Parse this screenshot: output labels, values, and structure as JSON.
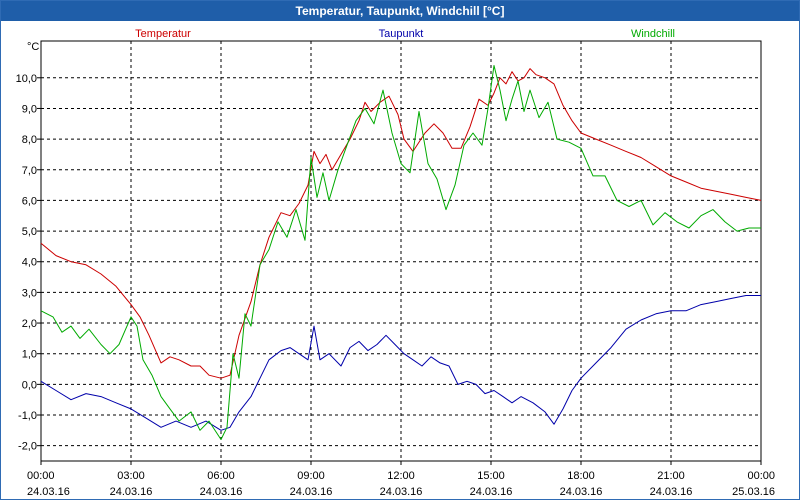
{
  "window": {
    "title": "Temperatur, Taupunkt, Windchill [°C]"
  },
  "chart_data": {
    "type": "line",
    "title": "Temperatur, Taupunkt, Windchill [°C]",
    "ylabel": "°C",
    "ylim": [
      -2.5,
      11.2
    ],
    "xlim": [
      0,
      24
    ],
    "grid": true,
    "yticks": [
      {
        "v": 10,
        "label": "10,0"
      },
      {
        "v": 9,
        "label": "9,0"
      },
      {
        "v": 8,
        "label": "8,0"
      },
      {
        "v": 7,
        "label": "7,0"
      },
      {
        "v": 6,
        "label": "6,0"
      },
      {
        "v": 5,
        "label": "5,0"
      },
      {
        "v": 4,
        "label": "4,0"
      },
      {
        "v": 3,
        "label": "3,0"
      },
      {
        "v": 2,
        "label": "2,0"
      },
      {
        "v": 1,
        "label": "1,0"
      },
      {
        "v": 0,
        "label": "0,0"
      },
      {
        "v": -1,
        "label": "-1,0"
      },
      {
        "v": -2,
        "label": "-2,0"
      }
    ],
    "xticks": [
      {
        "v": 0,
        "time": "00:00",
        "date": "24.03.16"
      },
      {
        "v": 3,
        "time": "03:00",
        "date": "24.03.16"
      },
      {
        "v": 6,
        "time": "06:00",
        "date": "24.03.16"
      },
      {
        "v": 9,
        "time": "09:00",
        "date": "24.03.16"
      },
      {
        "v": 12,
        "time": "12:00",
        "date": "24.03.16"
      },
      {
        "v": 15,
        "time": "15:00",
        "date": "24.03.16"
      },
      {
        "v": 18,
        "time": "18:00",
        "date": "24.03.16"
      },
      {
        "v": 21,
        "time": "21:00",
        "date": "24.03.16"
      },
      {
        "v": 24,
        "time": "00:00",
        "date": "25.03.16"
      }
    ],
    "series": [
      {
        "name": "Temperatur",
        "color": "#cc0000",
        "points": [
          [
            0,
            4.6
          ],
          [
            0.5,
            4.2
          ],
          [
            1,
            4.0
          ],
          [
            1.5,
            3.9
          ],
          [
            2,
            3.6
          ],
          [
            2.5,
            3.2
          ],
          [
            3,
            2.6
          ],
          [
            3.3,
            2.2
          ],
          [
            3.6,
            1.6
          ],
          [
            4,
            0.7
          ],
          [
            4.3,
            0.9
          ],
          [
            4.6,
            0.8
          ],
          [
            5,
            0.6
          ],
          [
            5.3,
            0.6
          ],
          [
            5.6,
            0.3
          ],
          [
            6,
            0.2
          ],
          [
            6.3,
            0.3
          ],
          [
            6.6,
            1.6
          ],
          [
            7,
            2.7
          ],
          [
            7.3,
            3.9
          ],
          [
            7.6,
            4.8
          ],
          [
            8,
            5.6
          ],
          [
            8.3,
            5.5
          ],
          [
            8.6,
            5.9
          ],
          [
            8.9,
            6.5
          ],
          [
            9.1,
            7.6
          ],
          [
            9.3,
            7.2
          ],
          [
            9.5,
            7.5
          ],
          [
            9.7,
            7.0
          ],
          [
            10,
            7.5
          ],
          [
            10.3,
            8.0
          ],
          [
            10.6,
            8.6
          ],
          [
            10.8,
            9.2
          ],
          [
            11,
            8.9
          ],
          [
            11.3,
            9.2
          ],
          [
            11.6,
            9.4
          ],
          [
            11.9,
            8.8
          ],
          [
            12.1,
            8.0
          ],
          [
            12.4,
            7.6
          ],
          [
            12.8,
            8.2
          ],
          [
            13.1,
            8.5
          ],
          [
            13.4,
            8.2
          ],
          [
            13.7,
            7.7
          ],
          [
            14,
            7.7
          ],
          [
            14.3,
            8.4
          ],
          [
            14.6,
            9.3
          ],
          [
            14.9,
            9.1
          ],
          [
            15.1,
            9.5
          ],
          [
            15.3,
            10.0
          ],
          [
            15.5,
            9.8
          ],
          [
            15.7,
            10.2
          ],
          [
            15.9,
            9.9
          ],
          [
            16.1,
            10.0
          ],
          [
            16.3,
            10.3
          ],
          [
            16.5,
            10.1
          ],
          [
            16.8,
            10.0
          ],
          [
            17.1,
            9.8
          ],
          [
            17.4,
            9.1
          ],
          [
            17.7,
            8.6
          ],
          [
            18,
            8.2
          ],
          [
            18.5,
            8.0
          ],
          [
            19,
            7.8
          ],
          [
            19.5,
            7.6
          ],
          [
            20,
            7.4
          ],
          [
            20.5,
            7.1
          ],
          [
            21,
            6.8
          ],
          [
            21.5,
            6.6
          ],
          [
            22,
            6.4
          ],
          [
            22.5,
            6.3
          ],
          [
            23,
            6.2
          ],
          [
            23.5,
            6.1
          ],
          [
            24,
            6.0
          ]
        ]
      },
      {
        "name": "Taupunkt",
        "color": "#0000aa",
        "points": [
          [
            0,
            0.1
          ],
          [
            0.5,
            -0.2
          ],
          [
            1,
            -0.5
          ],
          [
            1.5,
            -0.3
          ],
          [
            2,
            -0.4
          ],
          [
            2.5,
            -0.6
          ],
          [
            3,
            -0.8
          ],
          [
            3.5,
            -1.1
          ],
          [
            4,
            -1.4
          ],
          [
            4.5,
            -1.2
          ],
          [
            5,
            -1.4
          ],
          [
            5.5,
            -1.2
          ],
          [
            6,
            -1.5
          ],
          [
            6.3,
            -1.4
          ],
          [
            6.6,
            -0.9
          ],
          [
            7,
            -0.4
          ],
          [
            7.3,
            0.2
          ],
          [
            7.6,
            0.8
          ],
          [
            8,
            1.1
          ],
          [
            8.3,
            1.2
          ],
          [
            8.6,
            1.0
          ],
          [
            8.9,
            0.8
          ],
          [
            9.1,
            1.9
          ],
          [
            9.3,
            0.8
          ],
          [
            9.6,
            1.0
          ],
          [
            10,
            0.6
          ],
          [
            10.3,
            1.2
          ],
          [
            10.6,
            1.4
          ],
          [
            10.9,
            1.1
          ],
          [
            11.2,
            1.3
          ],
          [
            11.5,
            1.6
          ],
          [
            11.8,
            1.3
          ],
          [
            12.1,
            1.0
          ],
          [
            12.4,
            0.8
          ],
          [
            12.7,
            0.6
          ],
          [
            13,
            0.9
          ],
          [
            13.3,
            0.7
          ],
          [
            13.6,
            0.6
          ],
          [
            13.9,
            0.0
          ],
          [
            14.2,
            0.1
          ],
          [
            14.5,
            0.0
          ],
          [
            14.8,
            -0.3
          ],
          [
            15.1,
            -0.2
          ],
          [
            15.4,
            -0.4
          ],
          [
            15.7,
            -0.6
          ],
          [
            16,
            -0.4
          ],
          [
            16.4,
            -0.6
          ],
          [
            16.8,
            -0.9
          ],
          [
            17.1,
            -1.3
          ],
          [
            17.4,
            -0.8
          ],
          [
            17.7,
            -0.2
          ],
          [
            18,
            0.2
          ],
          [
            18.5,
            0.7
          ],
          [
            19,
            1.2
          ],
          [
            19.5,
            1.8
          ],
          [
            20,
            2.1
          ],
          [
            20.5,
            2.3
          ],
          [
            21,
            2.4
          ],
          [
            21.5,
            2.4
          ],
          [
            22,
            2.6
          ],
          [
            22.5,
            2.7
          ],
          [
            23,
            2.8
          ],
          [
            23.5,
            2.9
          ],
          [
            24,
            2.9
          ]
        ]
      },
      {
        "name": "Windchill",
        "color": "#00aa00",
        "points": [
          [
            0,
            2.4
          ],
          [
            0.4,
            2.2
          ],
          [
            0.7,
            1.7
          ],
          [
            1,
            1.9
          ],
          [
            1.3,
            1.5
          ],
          [
            1.6,
            1.8
          ],
          [
            2,
            1.3
          ],
          [
            2.3,
            1.0
          ],
          [
            2.6,
            1.3
          ],
          [
            3,
            2.2
          ],
          [
            3.2,
            1.9
          ],
          [
            3.4,
            0.8
          ],
          [
            3.7,
            0.3
          ],
          [
            4,
            -0.4
          ],
          [
            4.3,
            -0.8
          ],
          [
            4.6,
            -1.2
          ],
          [
            5,
            -0.9
          ],
          [
            5.3,
            -1.5
          ],
          [
            5.6,
            -1.2
          ],
          [
            6,
            -1.8
          ],
          [
            6.2,
            -1.4
          ],
          [
            6.4,
            1.0
          ],
          [
            6.6,
            0.2
          ],
          [
            6.8,
            2.3
          ],
          [
            7,
            1.9
          ],
          [
            7.3,
            3.9
          ],
          [
            7.6,
            4.4
          ],
          [
            7.9,
            5.3
          ],
          [
            8.2,
            4.8
          ],
          [
            8.5,
            5.7
          ],
          [
            8.8,
            4.7
          ],
          [
            9.0,
            7.4
          ],
          [
            9.2,
            6.1
          ],
          [
            9.4,
            6.9
          ],
          [
            9.6,
            6.0
          ],
          [
            9.9,
            7.0
          ],
          [
            10.2,
            7.8
          ],
          [
            10.5,
            8.6
          ],
          [
            10.8,
            9.0
          ],
          [
            11.1,
            8.5
          ],
          [
            11.4,
            9.6
          ],
          [
            11.7,
            8.2
          ],
          [
            12,
            7.2
          ],
          [
            12.3,
            6.9
          ],
          [
            12.6,
            8.9
          ],
          [
            12.9,
            7.2
          ],
          [
            13.2,
            6.7
          ],
          [
            13.5,
            5.7
          ],
          [
            13.8,
            6.5
          ],
          [
            14.1,
            7.8
          ],
          [
            14.4,
            8.2
          ],
          [
            14.7,
            7.8
          ],
          [
            14.9,
            9.0
          ],
          [
            15.1,
            10.4
          ],
          [
            15.3,
            9.6
          ],
          [
            15.5,
            8.6
          ],
          [
            15.7,
            9.3
          ],
          [
            15.9,
            9.9
          ],
          [
            16.1,
            8.9
          ],
          [
            16.3,
            9.6
          ],
          [
            16.6,
            8.7
          ],
          [
            16.9,
            9.2
          ],
          [
            17.2,
            8.0
          ],
          [
            17.6,
            7.9
          ],
          [
            18,
            7.7
          ],
          [
            18.4,
            6.8
          ],
          [
            18.8,
            6.8
          ],
          [
            19.2,
            6.0
          ],
          [
            19.6,
            5.8
          ],
          [
            20,
            6.0
          ],
          [
            20.4,
            5.2
          ],
          [
            20.8,
            5.6
          ],
          [
            21.2,
            5.3
          ],
          [
            21.6,
            5.1
          ],
          [
            22,
            5.5
          ],
          [
            22.4,
            5.7
          ],
          [
            22.8,
            5.3
          ],
          [
            23.2,
            5.0
          ],
          [
            23.6,
            5.1
          ],
          [
            24,
            5.1
          ]
        ]
      }
    ]
  }
}
